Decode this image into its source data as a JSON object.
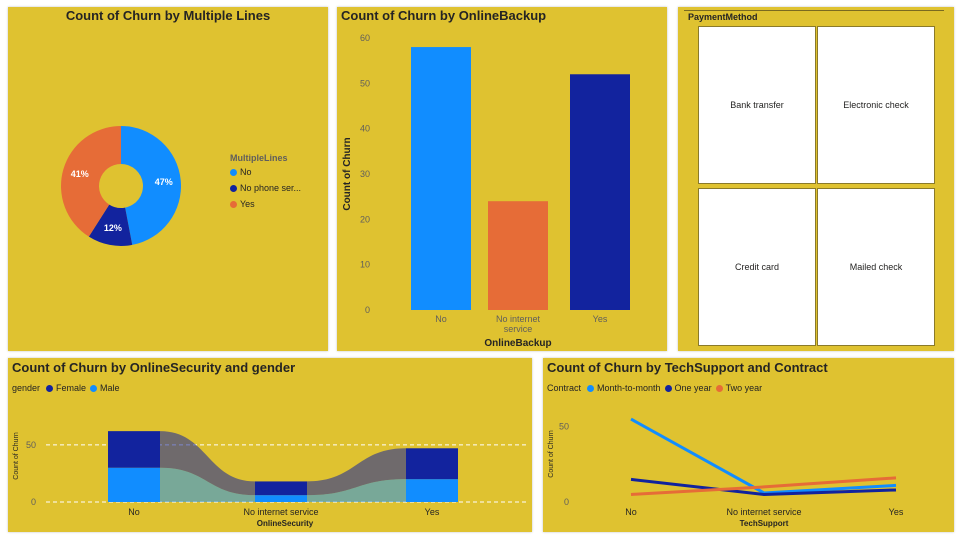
{
  "panels": {
    "multiple_lines": {
      "title": "Count of Churn by Multiple Lines"
    },
    "online_backup": {
      "title": "Count of Churn by OnlineBackup"
    },
    "payment": {
      "title": "PaymentMethod",
      "tiles": [
        "Bank transfer",
        "Electronic check",
        "Credit card",
        "Mailed check"
      ]
    },
    "online_security": {
      "title": "Count of Churn by OnlineSecurity and gender"
    },
    "tech_support": {
      "title": "Count of Churn by TechSupport and Contract"
    }
  },
  "colors": {
    "panel_bg": "#dfc230",
    "light_blue": "#118dff",
    "dark_blue": "#12239e",
    "orange": "#e66c37",
    "ribbon": "#5b5283"
  },
  "chart_data": [
    {
      "type": "pie",
      "donut": true,
      "title": "Count of Churn by Multiple Lines",
      "legend_title": "MultipleLines",
      "legend_position": "right",
      "categories": [
        "No",
        "No phone ser...",
        "Yes"
      ],
      "values": [
        47,
        12,
        41
      ],
      "labels": [
        "47%",
        "12%",
        "41%"
      ],
      "colors": [
        "#118dff",
        "#12239e",
        "#e66c37"
      ]
    },
    {
      "type": "bar",
      "title": "Count of Churn by OnlineBackup",
      "categories": [
        "No",
        "No internet service",
        "Yes"
      ],
      "category_lines": [
        [
          "No"
        ],
        [
          "No internet",
          "service"
        ],
        [
          "Yes"
        ]
      ],
      "values": [
        58,
        24,
        52
      ],
      "colors": [
        "#118dff",
        "#e66c37",
        "#12239e"
      ],
      "xlabel": "OnlineBackup",
      "ylabel": "Count of Churn",
      "ylim": [
        0,
        60
      ],
      "yticks": [
        0,
        10,
        20,
        30,
        40,
        50,
        60
      ],
      "grid": false
    },
    {
      "type": "bar",
      "stacked": true,
      "ribbon": true,
      "title": "Count of Churn by OnlineSecurity and gender",
      "legend_title": "gender",
      "legend_position": "top-left",
      "categories": [
        "No",
        "No internet service",
        "Yes"
      ],
      "series": [
        {
          "name": "Male",
          "values": [
            30,
            6,
            20
          ],
          "color": "#118dff"
        },
        {
          "name": "Female",
          "values": [
            32,
            12,
            27
          ],
          "color": "#12239e"
        }
      ],
      "legend_order": [
        "Female",
        "Male"
      ],
      "xlabel": "OnlineSecurity",
      "ylabel": "Count of Churn",
      "ylim": [
        0,
        70
      ],
      "yticks": [
        0,
        50
      ],
      "grid": true
    },
    {
      "type": "line",
      "title": "Count of Churn by TechSupport and Contract",
      "legend_title": "Contract",
      "legend_position": "top-left",
      "categories": [
        "No",
        "No internet service",
        "Yes"
      ],
      "series": [
        {
          "name": "Month-to-month",
          "values": [
            55,
            6,
            11
          ],
          "color": "#118dff"
        },
        {
          "name": "One year",
          "values": [
            15,
            5,
            8
          ],
          "color": "#12239e"
        },
        {
          "name": "Two year",
          "values": [
            5,
            10,
            16
          ],
          "color": "#e66c37"
        }
      ],
      "xlabel": "TechSupport",
      "ylabel": "Count of Churn",
      "ylim": [
        0,
        65
      ],
      "yticks": [
        0,
        50
      ],
      "grid": false
    }
  ]
}
